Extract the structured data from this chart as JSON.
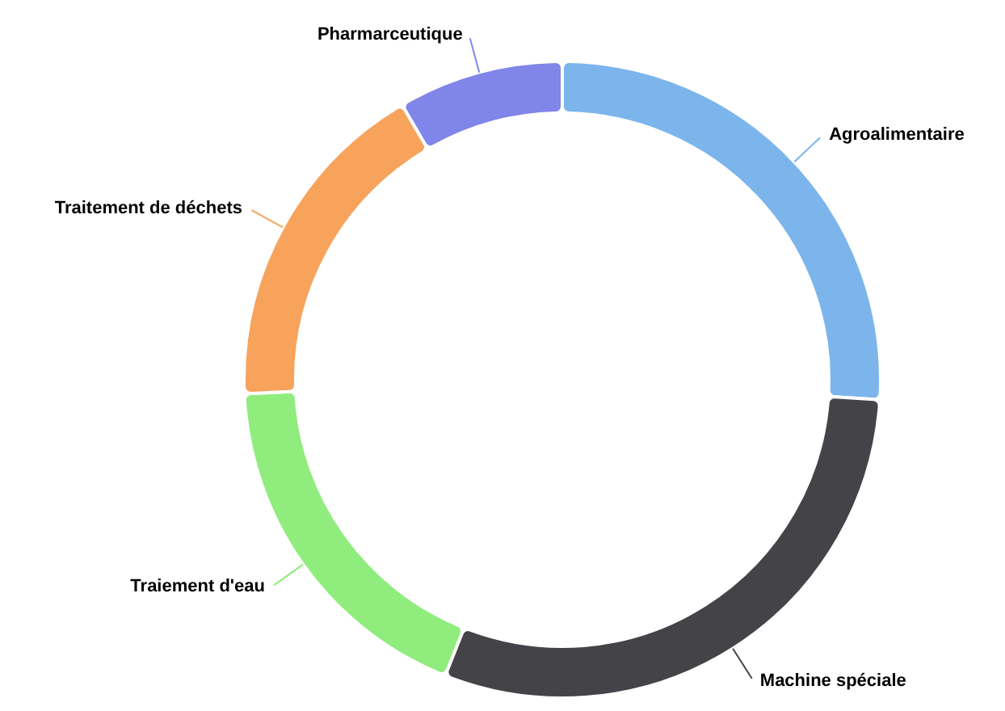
{
  "chart_data": {
    "type": "donut",
    "categories": [
      "Agroalimentaire",
      "Machine spéciale",
      "Traiement d'eau",
      "Traitement de déchets",
      "Pharmarceutique"
    ],
    "values": [
      26,
      30,
      18.3,
      17.3,
      8.4
    ],
    "colors": [
      "#7cb5ec",
      "#434348",
      "#90ed7d",
      "#f7a35c",
      "#8085e9"
    ],
    "legend": false
  }
}
